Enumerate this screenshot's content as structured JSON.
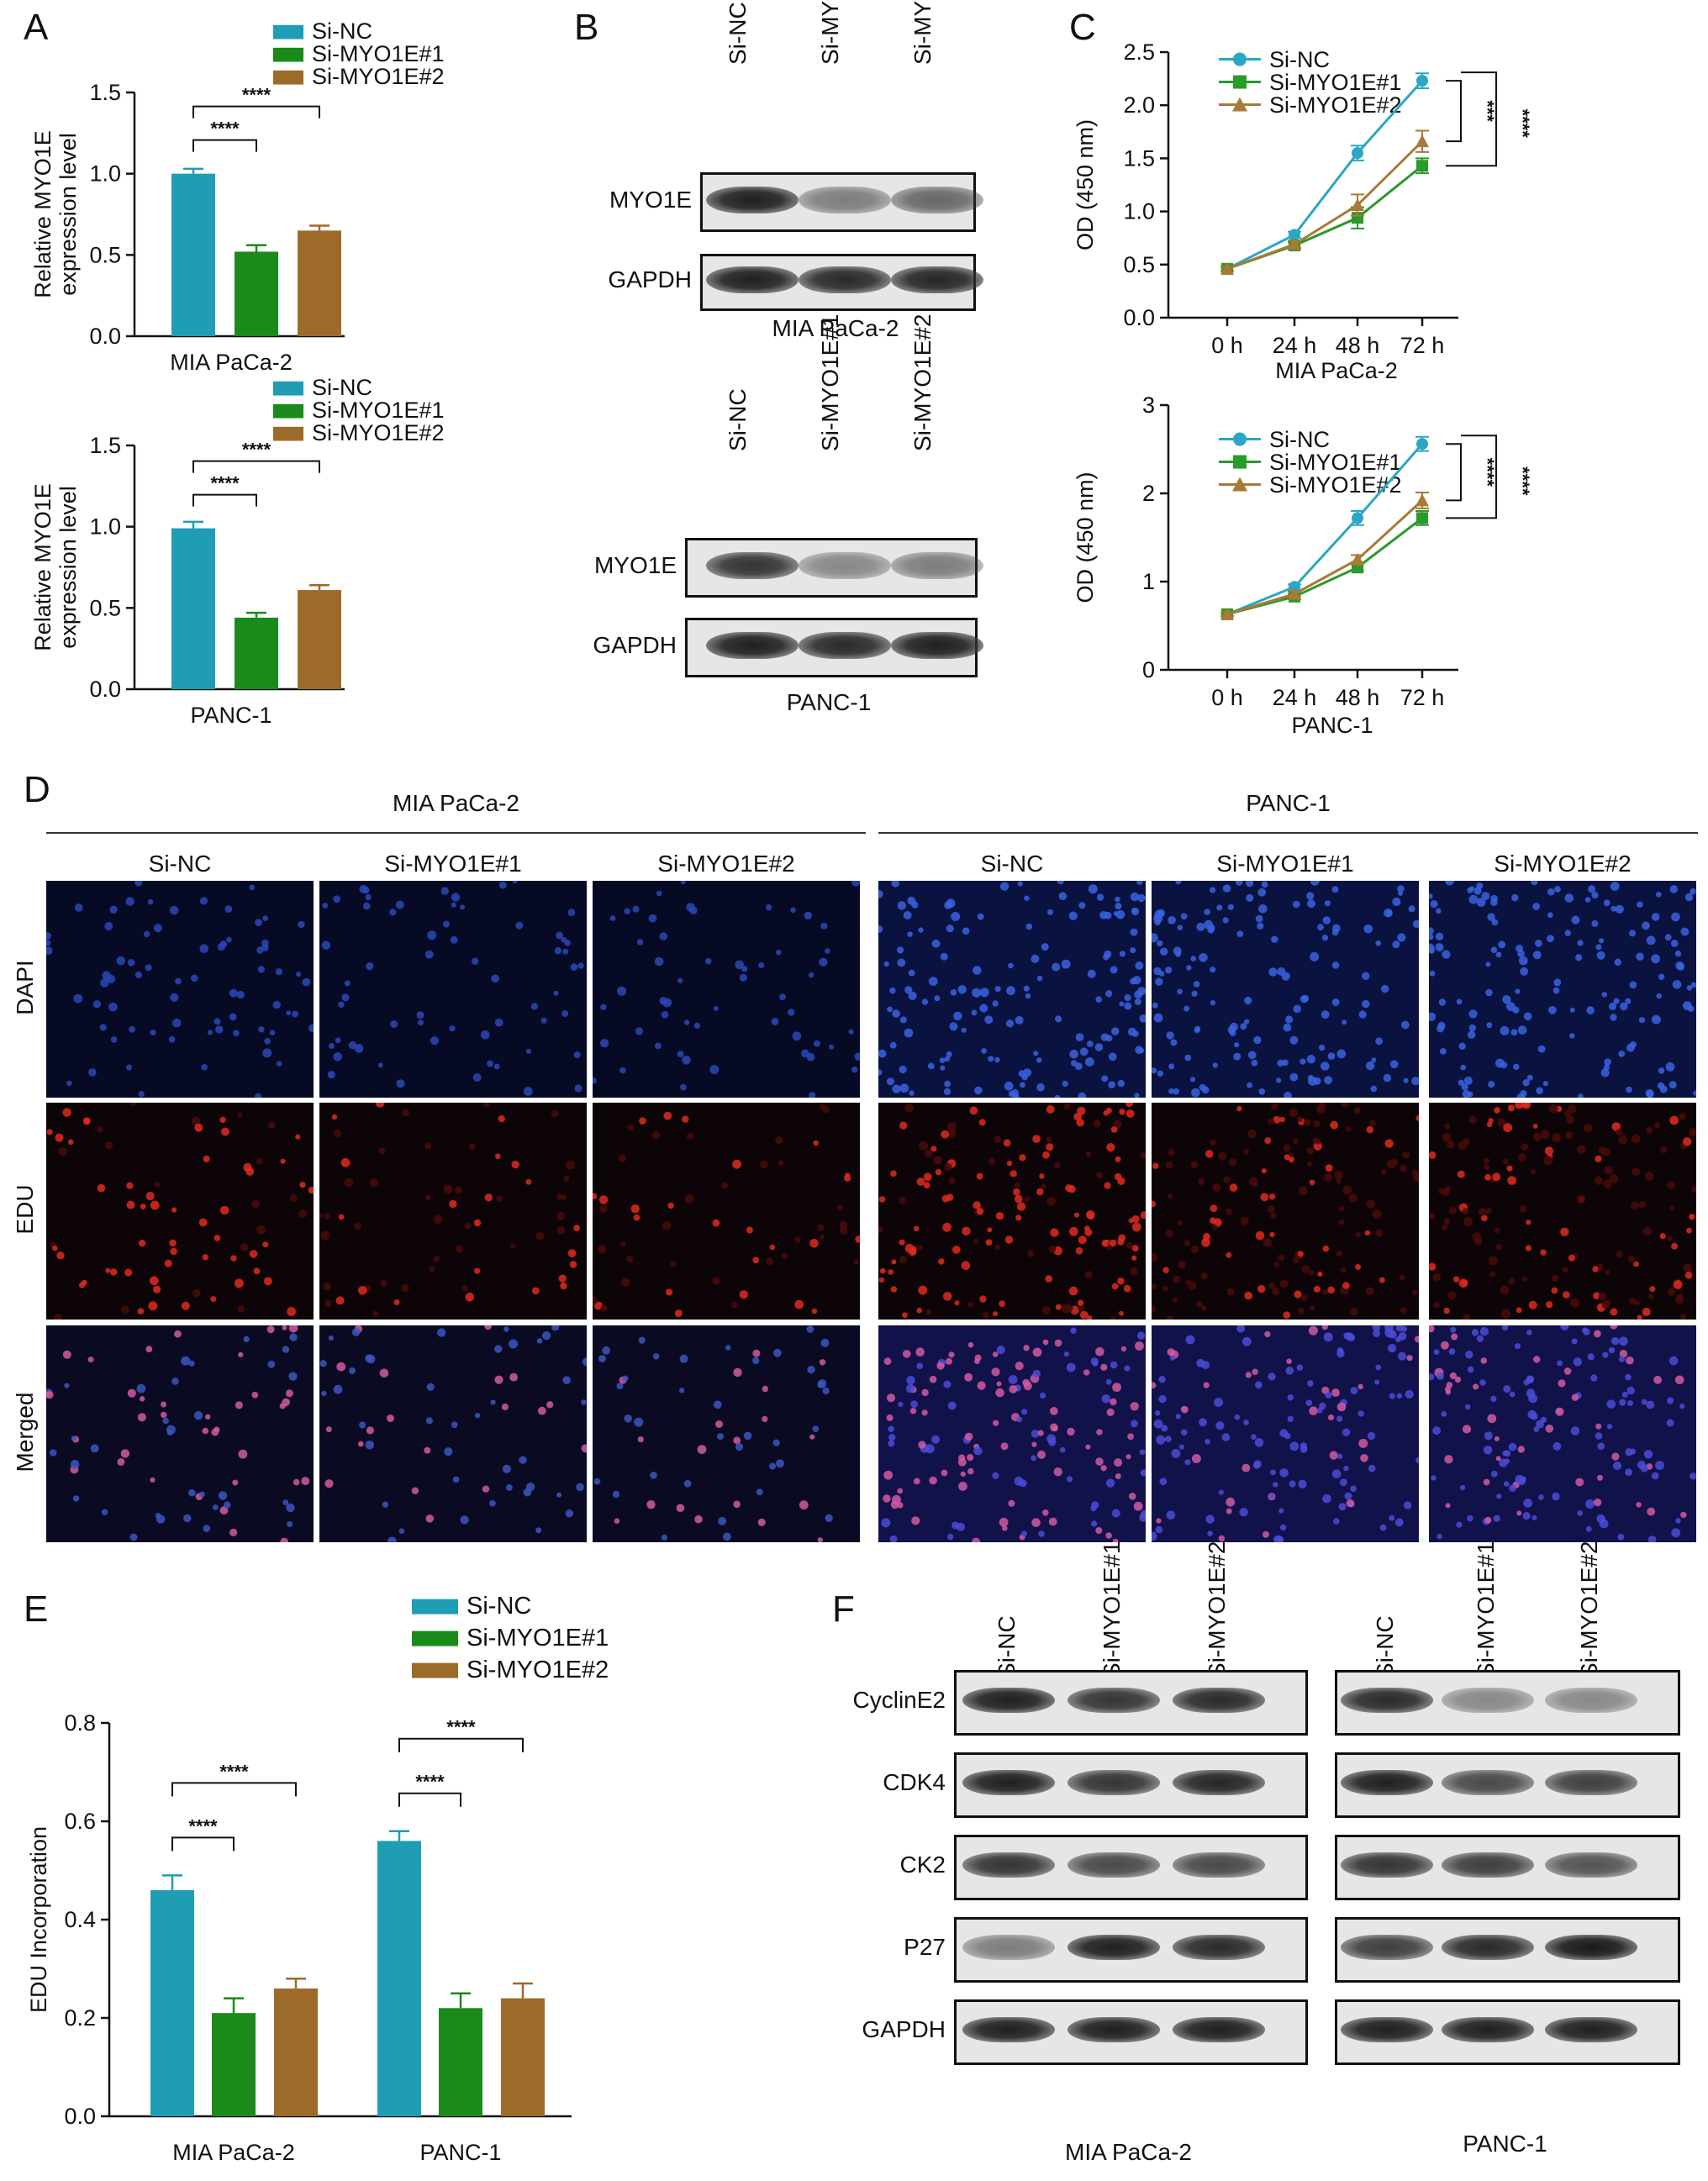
{
  "panels": {
    "A": "A",
    "B": "B",
    "C": "C",
    "D": "D",
    "E": "E",
    "F": "F"
  },
  "legend": [
    "Si-NC",
    "Si-MYO1E#1",
    "Si-MYO1E#2"
  ],
  "colors": {
    "si_nc": "#1f9db5",
    "si_myo1e_1": "#1a8a1a",
    "si_myo1e_2": "#9c6b2a",
    "line_nc": "#2aa7c4",
    "line_1": "#2a9a2a",
    "line_2": "#a87a35"
  },
  "sig": {
    "s4": "****",
    "s3": "***"
  },
  "chart_data": [
    {
      "id": "A-top",
      "type": "bar",
      "categories": [
        "Si-NC",
        "Si-MYO1E#1",
        "Si-MYO1E#2"
      ],
      "values": [
        1.0,
        0.52,
        0.65
      ],
      "errors": [
        0.03,
        0.04,
        0.03
      ],
      "ylabel": "Relative MYO1E\nexpression level",
      "ylim": [
        0,
        1.5
      ],
      "yticks": [
        "0.0",
        "0.5",
        "1.0",
        "1.5"
      ],
      "xlabel": "MIA PaCa-2"
    },
    {
      "id": "A-bottom",
      "type": "bar",
      "categories": [
        "Si-NC",
        "Si-MYO1E#1",
        "Si-MYO1E#2"
      ],
      "values": [
        0.99,
        0.44,
        0.61
      ],
      "errors": [
        0.04,
        0.03,
        0.03
      ],
      "ylabel": "Relative MYO1E\nexpression level",
      "ylim": [
        0,
        1.5
      ],
      "yticks": [
        "0.0",
        "0.5",
        "1.0",
        "1.5"
      ],
      "xlabel": "PANC-1"
    },
    {
      "id": "C-top",
      "type": "line",
      "x": [
        "0 h",
        "24 h",
        "48 h",
        "72 h"
      ],
      "series": [
        {
          "name": "Si-NC",
          "values": [
            0.46,
            0.78,
            1.55,
            2.23
          ],
          "errors": [
            0.02,
            0.03,
            0.07,
            0.07
          ]
        },
        {
          "name": "Si-MYO1E#1",
          "values": [
            0.46,
            0.68,
            0.94,
            1.43
          ],
          "errors": [
            0.02,
            0.03,
            0.1,
            0.07
          ]
        },
        {
          "name": "Si-MYO1E#2",
          "values": [
            0.46,
            0.69,
            1.06,
            1.66
          ],
          "errors": [
            0.02,
            0.03,
            0.1,
            0.1
          ]
        }
      ],
      "ylabel": "OD (450 nm)",
      "ylim": [
        0,
        2.5
      ],
      "yticks": [
        "0.0",
        "0.5",
        "1.0",
        "1.5",
        "2.0",
        "2.5"
      ],
      "xlabel": "MIA PaCa-2"
    },
    {
      "id": "C-bottom",
      "type": "line",
      "x": [
        "0 h",
        "24 h",
        "48 h",
        "72 h"
      ],
      "series": [
        {
          "name": "Si-NC",
          "values": [
            0.63,
            0.94,
            1.72,
            2.56
          ],
          "errors": [
            0.02,
            0.03,
            0.08,
            0.08
          ]
        },
        {
          "name": "Si-MYO1E#1",
          "values": [
            0.63,
            0.83,
            1.16,
            1.72
          ],
          "errors": [
            0.02,
            0.03,
            0.04,
            0.08
          ]
        },
        {
          "name": "Si-MYO1E#2",
          "values": [
            0.63,
            0.86,
            1.25,
            1.92
          ],
          "errors": [
            0.02,
            0.03,
            0.05,
            0.09
          ]
        }
      ],
      "ylabel": "OD (450 nm)",
      "ylim": [
        0,
        3
      ],
      "yticks": [
        "0",
        "1",
        "2",
        "3"
      ],
      "xlabel": "PANC-1"
    },
    {
      "id": "E",
      "type": "bar",
      "categories": [
        "MIA PaCa-2",
        "PANC-1"
      ],
      "series": [
        {
          "name": "Si-NC",
          "values": [
            0.46,
            0.56
          ],
          "errors": [
            0.03,
            0.02
          ]
        },
        {
          "name": "Si-MYO1E#1",
          "values": [
            0.21,
            0.22
          ],
          "errors": [
            0.03,
            0.03
          ]
        },
        {
          "name": "Si-MYO1E#2",
          "values": [
            0.26,
            0.24
          ],
          "errors": [
            0.02,
            0.03
          ]
        }
      ],
      "ylabel": "EDU Incorporation",
      "ylim": [
        0,
        0.8
      ],
      "yticks": [
        "0.0",
        "0.2",
        "0.4",
        "0.6",
        "0.8"
      ]
    }
  ],
  "blot_b": {
    "lanes": [
      "Si-NC",
      "Si-MYO1E#1",
      "Si-MYO1E#2"
    ],
    "rows": [
      "MYO1E",
      "GAPDH"
    ],
    "top_label": "MIA PaCa-2",
    "bottom_label": "PANC-1"
  },
  "micro_d": {
    "groups": [
      "MIA PaCa-2",
      "PANC-1"
    ],
    "columns": [
      "Si-NC",
      "Si-MYO1E#1",
      "Si-MYO1E#2"
    ],
    "rows": [
      "DAPI",
      "EDU",
      "Merged"
    ]
  },
  "blot_f": {
    "lanes": [
      "Si-NC",
      "Si-MYO1E#1",
      "Si-MYO1E#2"
    ],
    "rows": [
      "CyclinE2",
      "CDK4",
      "CK2",
      "P27",
      "GAPDH"
    ],
    "left_label": "MIA PaCa-2",
    "right_label": "PANC-1"
  }
}
